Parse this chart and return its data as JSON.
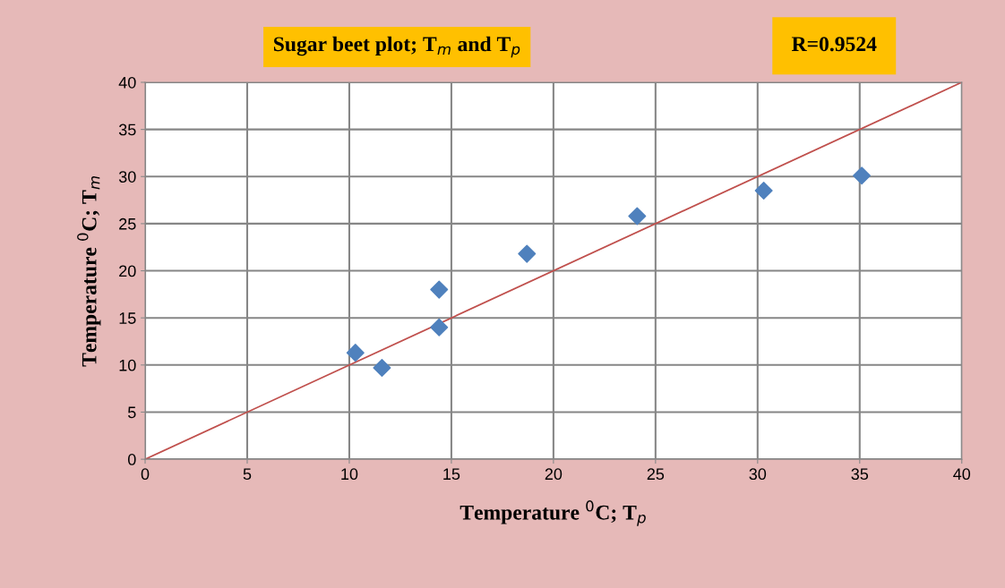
{
  "chart_data": {
    "type": "scatter",
    "title": "Sugar beet plot; T$_{m}$ and T$_{p}$",
    "xlabel": "Temperature $^{0}$C; T$_{p}$",
    "ylabel": "Temperature $^{0}$C; T$_{m}$",
    "annotations": [
      "R=0.9524"
    ],
    "series": [
      {
        "color": "#4f81bd",
        "x": [
          10.3,
          11.6,
          14.4,
          14.4,
          18.7,
          24.1,
          30.3,
          35.1
        ],
        "values": [
          11.3,
          9.7,
          18.0,
          14.0,
          21.8,
          25.8,
          28.5,
          30.1
        ],
        "marker": "diamond"
      },
      {
        "type": "line",
        "color": "#c0504d",
        "x": [
          0,
          40
        ],
        "values": [
          0,
          40
        ],
        "marker": "none"
      }
    ],
    "xlim": [
      0,
      40
    ],
    "ylim": [
      0,
      40
    ],
    "xticks": [
      0,
      5,
      10,
      15,
      20,
      25,
      30,
      35,
      40
    ],
    "yticks": [
      0,
      5,
      10,
      15,
      20,
      25,
      30,
      35,
      40
    ],
    "grid": true,
    "legend": false
  }
}
